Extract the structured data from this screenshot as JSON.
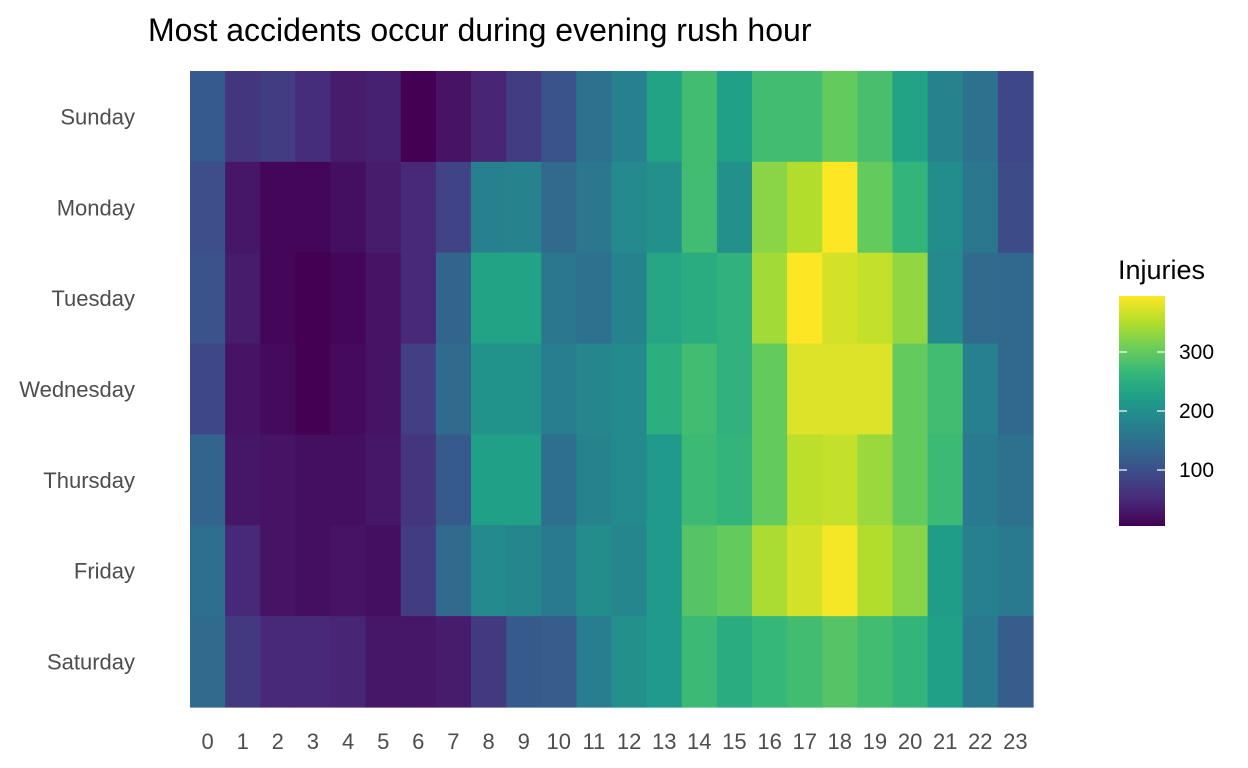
{
  "chart_data": {
    "type": "heatmap",
    "title": "Most accidents occur during evening rush hour",
    "xlabel": "",
    "ylabel": "",
    "x": [
      "0",
      "1",
      "2",
      "3",
      "4",
      "5",
      "6",
      "7",
      "8",
      "9",
      "10",
      "11",
      "12",
      "13",
      "14",
      "15",
      "16",
      "17",
      "18",
      "19",
      "20",
      "21",
      "22",
      "23"
    ],
    "y": [
      "Sunday",
      "Monday",
      "Tuesday",
      "Wednesday",
      "Thursday",
      "Friday",
      "Saturday"
    ],
    "values": [
      [
        115,
        65,
        75,
        55,
        35,
        40,
        5,
        25,
        45,
        75,
        105,
        150,
        175,
        230,
        275,
        225,
        275,
        275,
        300,
        280,
        230,
        180,
        150,
        90
      ],
      [
        100,
        30,
        10,
        10,
        20,
        35,
        50,
        85,
        175,
        180,
        140,
        160,
        190,
        200,
        275,
        200,
        325,
        350,
        395,
        300,
        260,
        195,
        160,
        95
      ],
      [
        105,
        35,
        10,
        5,
        10,
        25,
        50,
        130,
        230,
        230,
        160,
        150,
        180,
        235,
        245,
        255,
        340,
        395,
        370,
        360,
        330,
        190,
        140,
        135
      ],
      [
        90,
        25,
        15,
        5,
        15,
        25,
        80,
        140,
        205,
        205,
        170,
        185,
        190,
        250,
        275,
        255,
        300,
        375,
        375,
        375,
        300,
        275,
        175,
        135
      ],
      [
        130,
        30,
        25,
        20,
        20,
        30,
        65,
        115,
        225,
        225,
        145,
        180,
        190,
        215,
        270,
        260,
        300,
        355,
        360,
        335,
        300,
        270,
        165,
        150
      ],
      [
        145,
        50,
        25,
        20,
        25,
        20,
        75,
        140,
        190,
        185,
        165,
        195,
        185,
        215,
        290,
        300,
        345,
        370,
        390,
        350,
        325,
        220,
        175,
        165
      ],
      [
        140,
        70,
        50,
        50,
        45,
        30,
        30,
        35,
        70,
        115,
        120,
        170,
        200,
        215,
        270,
        245,
        265,
        275,
        290,
        275,
        260,
        225,
        165,
        120
      ]
    ],
    "color_scale": "viridis",
    "legend": {
      "title": "Injuries",
      "ticks": [
        100,
        200,
        300
      ],
      "min": 5,
      "max": 395,
      "placement": "right"
    },
    "grid": false
  }
}
